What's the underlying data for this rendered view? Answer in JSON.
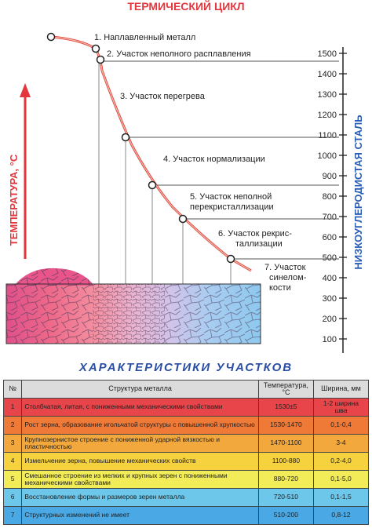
{
  "title": "ТЕРМИЧЕСКИЙ ЦИКЛ",
  "y_axis_label": "ТЕМПЕРАТУРА, °С",
  "right_axis_label": "НИЗКОУГЛЕРОДИСТАЯ СТАЛЬ",
  "scale_ticks": [
    "1500",
    "1400",
    "1300",
    "1200",
    "1100",
    "1000",
    "900",
    "800",
    "700",
    "600",
    "500",
    "400",
    "300",
    "200",
    "100"
  ],
  "zone_labels": [
    {
      "line1": "1. Наплавленный металл",
      "line2": ""
    },
    {
      "line1": "2. Участок неполного расплавления",
      "line2": ""
    },
    {
      "line1": "3. Участок перегрева",
      "line2": ""
    },
    {
      "line1": "4. Участок нормализации",
      "line2": ""
    },
    {
      "line1": "5. Участок неполной",
      "line2": "перекристаллизации"
    },
    {
      "line1": "6. Участок рекрис-",
      "line2": "таллизации"
    },
    {
      "line1": "7. Участок",
      "line2": "синелом-",
      "line3": "кости"
    }
  ],
  "table": {
    "section_title": "ХАРАКТЕРИСТИКИ  УЧАСТКОВ",
    "headers": [
      "№",
      "Структура металла",
      "Температура, °С",
      "Ширина, мм"
    ],
    "rows": [
      {
        "n": "1",
        "structure": "Столбчатая, литая, с пониженными механическими свойствами",
        "temp": "1530±5",
        "width": "1-2 ширина шва",
        "color": "#e8454a"
      },
      {
        "n": "2",
        "structure": "Рост зерна, образование игольчатой структуры с повышенной хрупкостью",
        "temp": "1530-1470",
        "width": "0,1-0,4",
        "color": "#ef7a38"
      },
      {
        "n": "3",
        "structure": "Крупнозернистое строение с пониженной ударной вязкостью и пластичностью",
        "temp": "1470-1100",
        "width": "3-4",
        "color": "#f2a83c"
      },
      {
        "n": "4",
        "structure": "Измельчение зерна, повышение механических свойств",
        "temp": "1100-880",
        "width": "0,2-4,0",
        "color": "#f6d23f"
      },
      {
        "n": "5",
        "structure": "Смешанное строение из мелких и крупных зерен с пониженными механическими свойствами",
        "temp": "880-720",
        "width": "0,1-5,0",
        "color": "#f2ec58"
      },
      {
        "n": "6",
        "structure": "Восстановление формы и размеров зерен металла",
        "temp": "720-510",
        "width": "0,1-1,5",
        "color": "#6cc7ea"
      },
      {
        "n": "7",
        "structure": "Структурных изменений не имеет",
        "temp": "510-200",
        "width": "0,8-12",
        "color": "#4aa9e4"
      }
    ]
  }
}
